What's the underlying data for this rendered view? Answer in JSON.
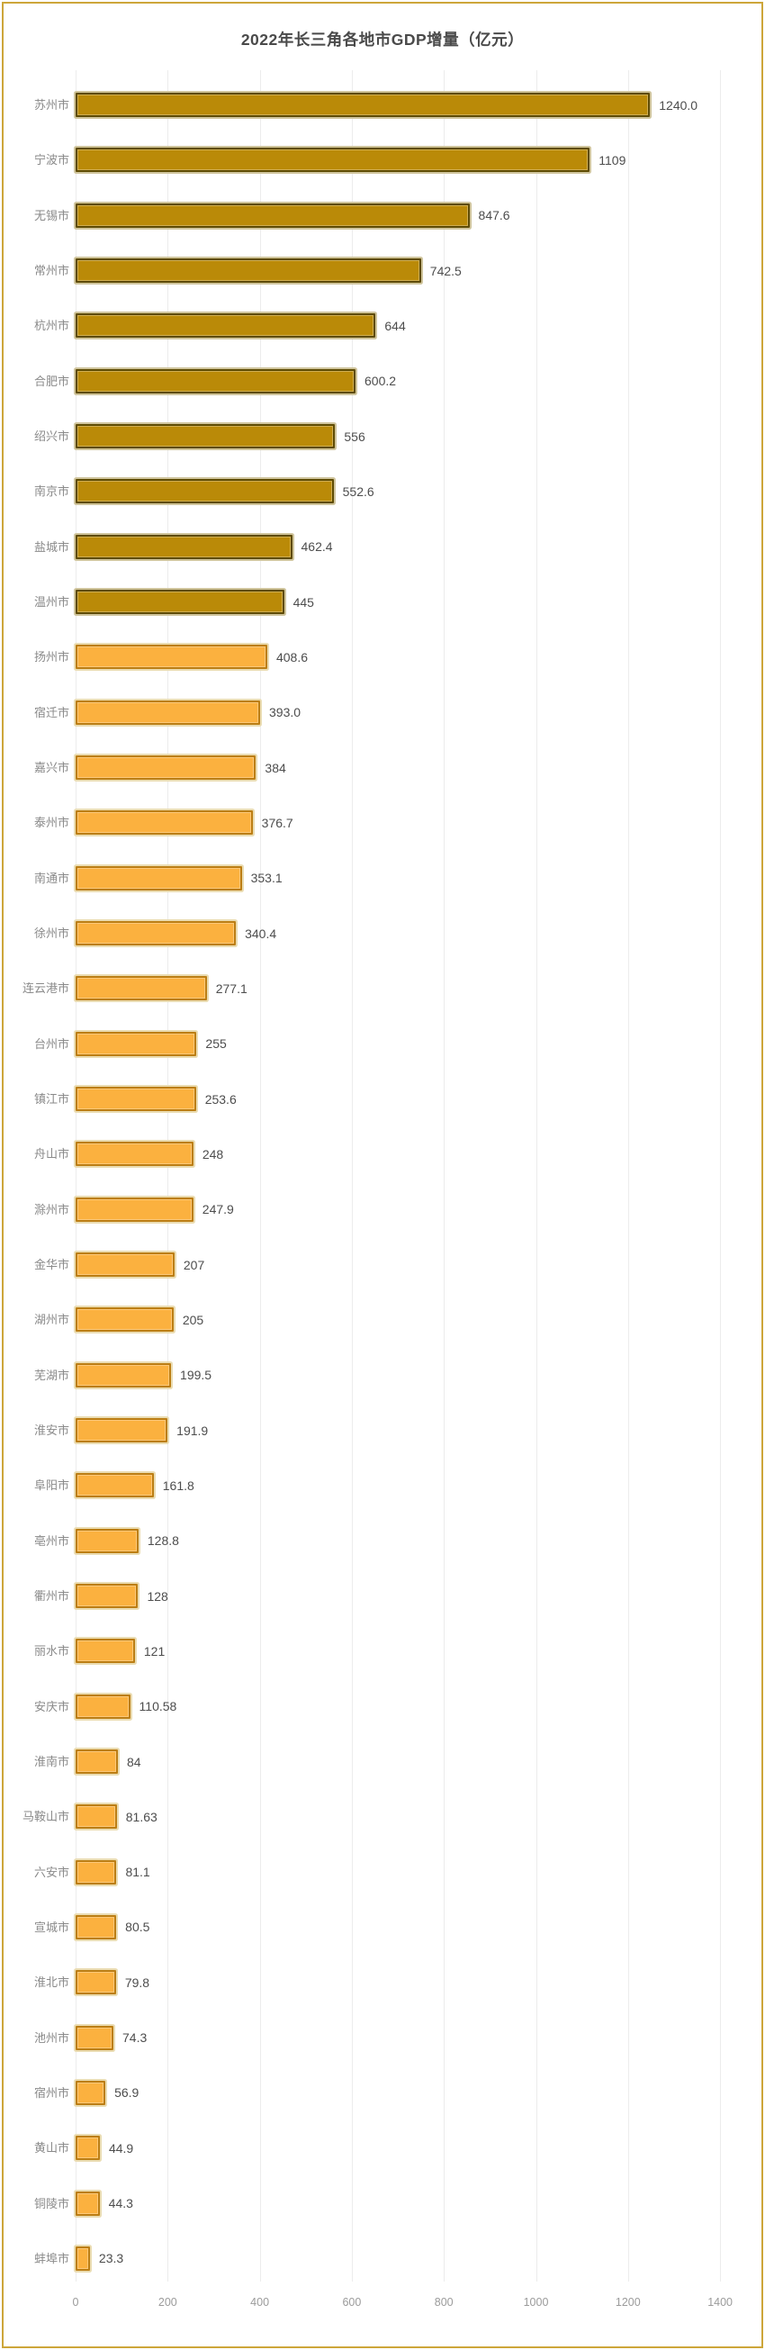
{
  "chart_data": {
    "type": "bar",
    "orientation": "horizontal",
    "title": "2022年长三角各地市GDP增量（亿元）",
    "categories": [
      "苏州市",
      "宁波市",
      "无锡市",
      "常州市",
      "杭州市",
      "合肥市",
      "绍兴市",
      "南京市",
      "盐城市",
      "温州市",
      "扬州市",
      "宿迁市",
      "嘉兴市",
      "泰州市",
      "南通市",
      "徐州市",
      "连云港市",
      "台州市",
      "镇江市",
      "舟山市",
      "滁州市",
      "金华市",
      "湖州市",
      "芜湖市",
      "淮安市",
      "阜阳市",
      "亳州市",
      "衢州市",
      "丽水市",
      "安庆市",
      "淮南市",
      "马鞍山市",
      "六安市",
      "宣城市",
      "淮北市",
      "池州市",
      "宿州市",
      "黄山市",
      "铜陵市",
      "蚌埠市"
    ],
    "values": [
      1240.0,
      1109,
      847.6,
      742.5,
      644,
      600.2,
      556,
      552.6,
      462.4,
      445,
      408.6,
      393.0,
      384,
      376.7,
      353.1,
      340.4,
      277.1,
      255,
      253.6,
      248,
      247.9,
      207,
      205,
      199.5,
      191.9,
      161.8,
      128.8,
      128,
      121,
      110.58,
      84,
      81.63,
      81.1,
      80.5,
      79.8,
      74.3,
      56.9,
      44.9,
      44.3,
      23.3
    ],
    "value_labels": [
      "1240.0",
      "1109",
      "847.6",
      "742.5",
      "644",
      "600.2",
      "556",
      "552.6",
      "462.4",
      "445",
      "408.6",
      "393.0",
      "384",
      "376.7",
      "353.1",
      "340.4",
      "277.1",
      "255",
      "253.6",
      "248",
      "247.9",
      "207",
      "205",
      "199.5",
      "191.9",
      "161.8",
      "128.8",
      "128",
      "121",
      "110.58",
      "84",
      "81.63",
      "81.1",
      "80.5",
      "79.8",
      "74.3",
      "56.9",
      "44.9",
      "44.3",
      "23.3"
    ],
    "x_ticks": [
      0,
      200,
      400,
      600,
      800,
      1000,
      1200,
      1400
    ],
    "xlim": [
      0,
      1400
    ],
    "grid": "vertical-light",
    "legend": "none",
    "style": {
      "dark_rows_count": 10,
      "dark_fill": "#BA8A08",
      "dark_border": "#5E4B02",
      "dark_halo": "#CFC49C",
      "light_fill": "#FBB13F",
      "light_border": "#BC7E14",
      "light_halo": "#EADCB2",
      "category_color": "#8A8A8A",
      "value_color": "#4D4D4D",
      "tick_color": "#9B9B9B",
      "title_color": "#4A4A4A",
      "frame_color": "#CDA63A",
      "gridline_color": "#ECECEC"
    }
  }
}
